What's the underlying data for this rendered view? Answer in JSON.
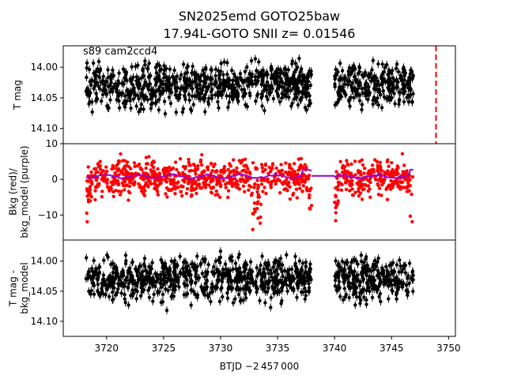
{
  "chart_data": {
    "type": "scatter",
    "title_line1": "SN2025emd  GOTO25baw",
    "title_line2": "17.94L-GOTO SNII z= 0.01546",
    "annotation": "s89 cam2ccd4",
    "xlabel": "BTJD −2 457 000",
    "xlim": [
      3716.2,
      3750.6
    ],
    "xticks": [
      3720,
      3725,
      3730,
      3735,
      3740,
      3745,
      3750
    ],
    "xtick_labels": [
      "3720",
      "3725",
      "3730",
      "3735",
      "3740",
      "3745",
      "3750"
    ],
    "data_segments": [
      [
        3718.2,
        3738.0
      ],
      [
        3740.0,
        3746.9
      ]
    ],
    "marker_line_x": 3748.9,
    "marker_line_color": "#ff0000",
    "panels": [
      {
        "id": "top",
        "ylabel": "T mag",
        "ylim": [
          14.125,
          13.965
        ],
        "inverted": true,
        "yticks": [
          14.0,
          14.05,
          14.1
        ],
        "ytick_labels": [
          "14.00",
          "14.05",
          "14.10"
        ],
        "series": [
          {
            "color": "#000000",
            "center": 14.03,
            "spread": 0.025,
            "errorbars": true
          }
        ]
      },
      {
        "id": "middle",
        "ylabel": "Bkg (red)/\nbkg_model (purple)",
        "ylim": [
          -17,
          10
        ],
        "inverted": false,
        "yticks": [
          10,
          0,
          -10
        ],
        "ytick_labels": [
          "10",
          "0",
          "−10"
        ],
        "series": [
          {
            "name": "Bkg",
            "color": "#ff0000",
            "center": 0.5,
            "spread": 3.5
          },
          {
            "name": "bkg_model",
            "color": "#9400d3",
            "center": 0.8,
            "spread": 0.6
          }
        ]
      },
      {
        "id": "bottom",
        "ylabel": "T mag -\nbkg_model",
        "ylim": [
          14.125,
          13.965
        ],
        "inverted": true,
        "yticks": [
          14.0,
          14.05,
          14.1
        ],
        "ytick_labels": [
          "14.00",
          "14.05",
          "14.10"
        ],
        "series": [
          {
            "color": "#000000",
            "center": 14.03,
            "spread": 0.025,
            "errorbars": true
          }
        ]
      }
    ]
  }
}
